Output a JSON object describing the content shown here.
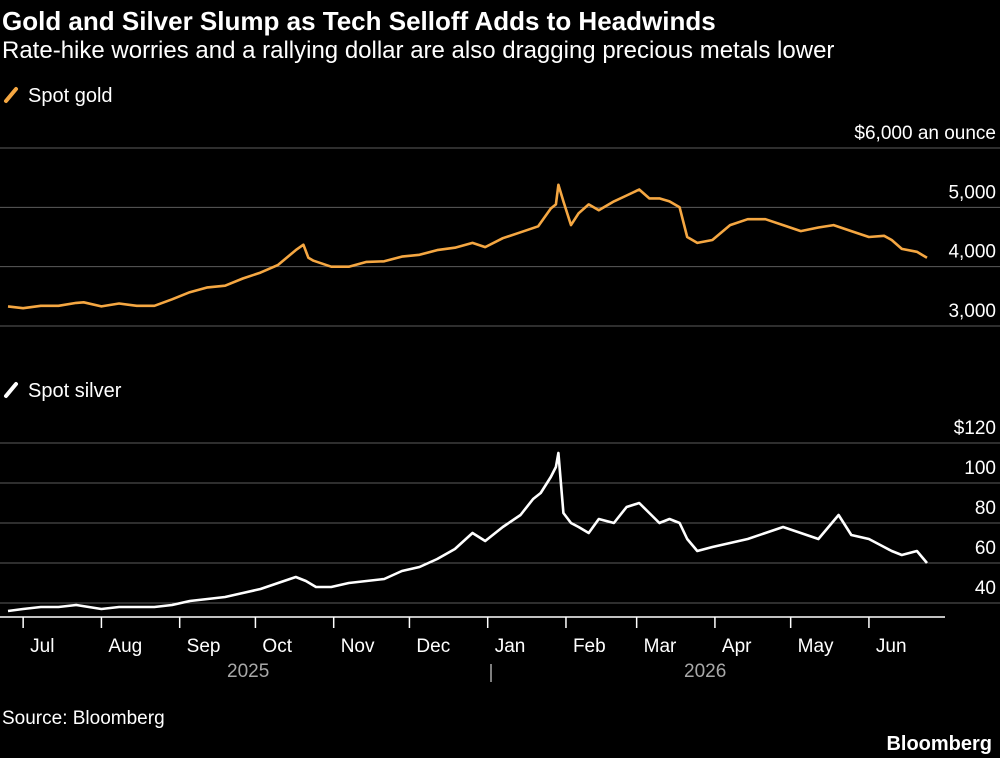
{
  "title": "Gold and Silver Slump as Tech Selloff Adds to Headwinds",
  "subtitle": "Rate-hike worries and a rallying dollar are also dragging precious metals lower",
  "source": "Source: Bloomberg",
  "brand": "Bloomberg",
  "chart_data": [
    {
      "type": "line",
      "legend": "Spot gold",
      "color": "#f5a742",
      "unit_label": "an ounce",
      "ylim": [
        3000,
        6000
      ],
      "y_ticks": [
        {
          "value": 6000,
          "label": "$6,000 an ounce"
        },
        {
          "value": 5000,
          "label": "5,000"
        },
        {
          "value": 4000,
          "label": "4,000"
        },
        {
          "value": 3000,
          "label": "3,000"
        }
      ],
      "grid": true,
      "series": [
        {
          "name": "Spot gold",
          "x": [
            "2025-06-25",
            "2025-07-01",
            "2025-07-08",
            "2025-07-15",
            "2025-07-22",
            "2025-07-25",
            "2025-08-01",
            "2025-08-08",
            "2025-08-15",
            "2025-08-22",
            "2025-08-29",
            "2025-09-05",
            "2025-09-12",
            "2025-09-19",
            "2025-09-26",
            "2025-10-03",
            "2025-10-10",
            "2025-10-17",
            "2025-10-20",
            "2025-10-22",
            "2025-10-24",
            "2025-10-31",
            "2025-11-07",
            "2025-11-14",
            "2025-11-21",
            "2025-11-28",
            "2025-12-05",
            "2025-12-12",
            "2025-12-19",
            "2025-12-26",
            "2025-12-31",
            "2026-01-07",
            "2026-01-14",
            "2026-01-21",
            "2026-01-26",
            "2026-01-28",
            "2026-01-29",
            "2026-01-31",
            "2026-02-03",
            "2026-02-06",
            "2026-02-10",
            "2026-02-14",
            "2026-02-20",
            "2026-02-25",
            "2026-03-02",
            "2026-03-06",
            "2026-03-10",
            "2026-03-14",
            "2026-03-18",
            "2026-03-21",
            "2026-03-25",
            "2026-03-31",
            "2026-04-07",
            "2026-04-14",
            "2026-04-21",
            "2026-04-28",
            "2026-05-05",
            "2026-05-12",
            "2026-05-18",
            "2026-05-25",
            "2026-06-01",
            "2026-06-07",
            "2026-06-10",
            "2026-06-14",
            "2026-06-20",
            "2026-06-24"
          ],
          "values": [
            3330,
            3300,
            3340,
            3340,
            3390,
            3400,
            3330,
            3380,
            3340,
            3340,
            3450,
            3570,
            3650,
            3680,
            3800,
            3900,
            4030,
            4280,
            4370,
            4150,
            4100,
            4000,
            4000,
            4080,
            4090,
            4170,
            4200,
            4280,
            4320,
            4400,
            4330,
            4480,
            4580,
            4680,
            4980,
            5050,
            5380,
            5100,
            4700,
            4900,
            5050,
            4950,
            5100,
            5200,
            5300,
            5150,
            5150,
            5100,
            5000,
            4500,
            4400,
            4450,
            4700,
            4800,
            4800,
            4700,
            4600,
            4660,
            4700,
            4600,
            4500,
            4520,
            4450,
            4300,
            4250,
            4150
          ]
        }
      ]
    },
    {
      "type": "line",
      "legend": "Spot silver",
      "color": "#ffffff",
      "ylim": [
        35,
        120
      ],
      "y_ticks": [
        {
          "value": 120,
          "label": "$120"
        },
        {
          "value": 100,
          "label": "100"
        },
        {
          "value": 80,
          "label": "80"
        },
        {
          "value": 60,
          "label": "60"
        },
        {
          "value": 40,
          "label": "40"
        }
      ],
      "grid": true,
      "series": [
        {
          "name": "Spot silver",
          "x": [
            "2025-06-25",
            "2025-07-01",
            "2025-07-08",
            "2025-07-15",
            "2025-07-22",
            "2025-08-01",
            "2025-08-08",
            "2025-08-15",
            "2025-08-22",
            "2025-08-29",
            "2025-09-05",
            "2025-09-12",
            "2025-09-19",
            "2025-09-26",
            "2025-10-03",
            "2025-10-10",
            "2025-10-17",
            "2025-10-21",
            "2025-10-25",
            "2025-10-31",
            "2025-11-07",
            "2025-11-14",
            "2025-11-21",
            "2025-11-28",
            "2025-12-05",
            "2025-12-12",
            "2025-12-19",
            "2025-12-26",
            "2025-12-31",
            "2026-01-07",
            "2026-01-14",
            "2026-01-19",
            "2026-01-22",
            "2026-01-26",
            "2026-01-28",
            "2026-01-29",
            "2026-01-31",
            "2026-02-03",
            "2026-02-06",
            "2026-02-10",
            "2026-02-14",
            "2026-02-20",
            "2026-02-25",
            "2026-03-02",
            "2026-03-06",
            "2026-03-10",
            "2026-03-14",
            "2026-03-18",
            "2026-03-21",
            "2026-03-25",
            "2026-03-31",
            "2026-04-07",
            "2026-04-14",
            "2026-04-21",
            "2026-04-28",
            "2026-05-05",
            "2026-05-12",
            "2026-05-16",
            "2026-05-20",
            "2026-05-25",
            "2026-06-01",
            "2026-06-07",
            "2026-06-10",
            "2026-06-14",
            "2026-06-20",
            "2026-06-24"
          ],
          "values": [
            36,
            37,
            38,
            38,
            39,
            37,
            38,
            38,
            38,
            39,
            41,
            42,
            43,
            45,
            47,
            50,
            53,
            51,
            48,
            48,
            50,
            51,
            52,
            56,
            58,
            62,
            67,
            75,
            71,
            78,
            84,
            92,
            95,
            103,
            108,
            115,
            85,
            80,
            78,
            75,
            82,
            80,
            88,
            90,
            85,
            80,
            82,
            80,
            72,
            66,
            68,
            70,
            72,
            75,
            78,
            75,
            72,
            78,
            84,
            74,
            72,
            68,
            66,
            64,
            66,
            60
          ]
        }
      ]
    }
  ],
  "x_axis": {
    "month_labels": [
      "Jul",
      "Aug",
      "Sep",
      "Oct",
      "Nov",
      "Dec",
      "Jan",
      "Feb",
      "Mar",
      "Apr",
      "May",
      "Jun"
    ],
    "month_dates": [
      "2025-07-01",
      "2025-08-01",
      "2025-09-01",
      "2025-10-01",
      "2025-11-01",
      "2025-12-01",
      "2026-01-01",
      "2026-02-01",
      "2026-03-01",
      "2026-04-01",
      "2026-05-01",
      "2026-06-01"
    ],
    "years": [
      "2025",
      "2026"
    ]
  }
}
